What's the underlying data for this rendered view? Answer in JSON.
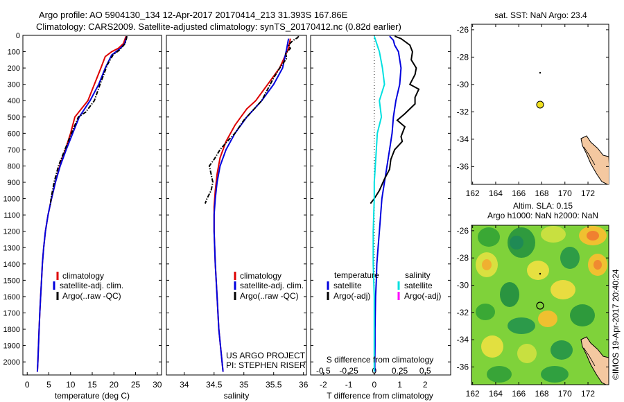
{
  "header": {
    "line1": "Argo profile: AO 5904130_134 12-Apr-2017 20170414_213 31.393S 167.86E",
    "line2": "Climatology: CARS2009. Satellite-adjusted climatology: synTS_20170412.nc (0.82d earlier)"
  },
  "colors": {
    "climatology": "#dd0000",
    "satellite": "#0000dd",
    "argo": "#000000",
    "salinity_sat": "#00e0e0",
    "salinity_argo": "#ff00ff",
    "map_land": "#f4c8a0",
    "float_marker": "#f0e020"
  },
  "chart_data": [
    {
      "id": "temperature",
      "type": "line",
      "xlabel": "temperature (deg C)",
      "ylabel": "",
      "xlim": [
        -1,
        31
      ],
      "ylim": [
        2080,
        0
      ],
      "xticks": [
        0,
        5,
        10,
        15,
        20,
        25,
        30
      ],
      "yticks": [
        0,
        100,
        200,
        300,
        400,
        500,
        600,
        700,
        800,
        900,
        1000,
        1100,
        1200,
        1300,
        1400,
        1500,
        1600,
        1700,
        1800,
        1900,
        2000
      ],
      "legend": [
        "climatology",
        "satellite-adj. clim.",
        "Argo(..raw -QC)"
      ],
      "series": [
        {
          "name": "climatology",
          "style": "solid",
          "color": "#dd0000",
          "points": [
            [
              22.8,
              5
            ],
            [
              22.6,
              20
            ],
            [
              22.2,
              50
            ],
            [
              21,
              80
            ],
            [
              19.5,
              100
            ],
            [
              18,
              130
            ],
            [
              17,
              200
            ],
            [
              15.5,
              300
            ],
            [
              14,
              400
            ],
            [
              12.5,
              450
            ],
            [
              11,
              500
            ],
            [
              10,
              600
            ],
            [
              8.8,
              700
            ],
            [
              7.5,
              800
            ],
            [
              6.5,
              900
            ],
            [
              5.6,
              1000
            ],
            [
              4.8,
              1100
            ],
            [
              4.2,
              1200
            ],
            [
              3.8,
              1300
            ],
            [
              3.5,
              1400
            ],
            [
              3.3,
              1500
            ],
            [
              3.1,
              1600
            ],
            [
              2.9,
              1700
            ],
            [
              2.75,
              1800
            ],
            [
              2.6,
              1900
            ],
            [
              2.45,
              2000
            ],
            [
              2.35,
              2060
            ]
          ]
        },
        {
          "name": "satellite",
          "style": "solid",
          "color": "#0000dd",
          "points": [
            [
              23,
              5
            ],
            [
              22.8,
              20
            ],
            [
              22.5,
              50
            ],
            [
              21.5,
              80
            ],
            [
              20.5,
              100
            ],
            [
              19.5,
              120
            ],
            [
              18,
              200
            ],
            [
              16.5,
              300
            ],
            [
              14.5,
              400
            ],
            [
              12,
              500
            ],
            [
              10.5,
              600
            ],
            [
              9,
              700
            ],
            [
              7.6,
              800
            ],
            [
              6.5,
              900
            ],
            [
              5.6,
              1000
            ],
            [
              4.8,
              1100
            ],
            [
              4.2,
              1200
            ],
            [
              3.8,
              1300
            ],
            [
              3.5,
              1400
            ],
            [
              3.3,
              1500
            ],
            [
              3.1,
              1600
            ],
            [
              2.9,
              1700
            ],
            [
              2.75,
              1800
            ],
            [
              2.6,
              1900
            ],
            [
              2.45,
              2000
            ],
            [
              2.35,
              2060
            ]
          ]
        },
        {
          "name": "argo",
          "style": "dashdot",
          "color": "#000000",
          "points": [
            [
              23,
              5
            ],
            [
              22.9,
              20
            ],
            [
              22.6,
              50
            ],
            [
              21.3,
              90
            ],
            [
              19.8,
              120
            ],
            [
              18.5,
              180
            ],
            [
              17.8,
              230
            ],
            [
              16.8,
              300
            ],
            [
              15.5,
              400
            ],
            [
              13.5,
              470
            ],
            [
              11.8,
              500
            ],
            [
              10.2,
              600
            ],
            [
              8.7,
              700
            ],
            [
              7.2,
              800
            ],
            [
              6.2,
              900
            ],
            [
              5.5,
              1000
            ],
            [
              5.3,
              1040
            ]
          ]
        }
      ]
    },
    {
      "id": "salinity",
      "type": "line",
      "xlabel": "salinity",
      "ylabel": "",
      "xlim": [
        33.7,
        36.05
      ],
      "ylim": [
        2080,
        0
      ],
      "xticks": [
        34,
        34.5,
        35,
        35.5,
        36
      ],
      "legend": [
        "climatology",
        "satellite-adj. clim.",
        "Argo(..raw -QC)"
      ],
      "series": [
        {
          "name": "climatology",
          "style": "solid",
          "color": "#dd0000",
          "points": [
            [
              35.78,
              20
            ],
            [
              35.75,
              80
            ],
            [
              35.6,
              200
            ],
            [
              35.4,
              300
            ],
            [
              35.2,
              400
            ],
            [
              35.05,
              450
            ],
            [
              34.95,
              500
            ],
            [
              34.85,
              550
            ],
            [
              34.7,
              650
            ],
            [
              34.6,
              750
            ],
            [
              34.55,
              850
            ],
            [
              34.52,
              950
            ],
            [
              34.5,
              1050
            ],
            [
              34.5,
              1200
            ],
            [
              34.52,
              1400
            ],
            [
              34.55,
              1600
            ],
            [
              34.58,
              1800
            ],
            [
              34.62,
              1950
            ],
            [
              34.65,
              2060
            ]
          ]
        },
        {
          "name": "satellite",
          "style": "solid",
          "color": "#0000dd",
          "points": [
            [
              35.75,
              20
            ],
            [
              35.72,
              80
            ],
            [
              35.65,
              200
            ],
            [
              35.5,
              300
            ],
            [
              35.3,
              400
            ],
            [
              35.05,
              500
            ],
            [
              34.85,
              600
            ],
            [
              34.7,
              700
            ],
            [
              34.6,
              800
            ],
            [
              34.55,
              900
            ],
            [
              34.52,
              1000
            ],
            [
              34.5,
              1100
            ],
            [
              34.5,
              1200
            ],
            [
              34.52,
              1400
            ],
            [
              34.55,
              1600
            ],
            [
              34.58,
              1800
            ],
            [
              34.62,
              1950
            ],
            [
              34.65,
              2060
            ]
          ]
        },
        {
          "name": "argo",
          "style": "dashdot",
          "color": "#000000",
          "points": [
            [
              35.92,
              5
            ],
            [
              35.9,
              15
            ],
            [
              35.85,
              25
            ],
            [
              35.8,
              40
            ],
            [
              35.75,
              60
            ],
            [
              35.78,
              80
            ],
            [
              35.7,
              110
            ],
            [
              35.72,
              140
            ],
            [
              35.62,
              190
            ],
            [
              35.5,
              260
            ],
            [
              35.4,
              330
            ],
            [
              35.3,
              400
            ],
            [
              35.15,
              460
            ],
            [
              35.0,
              520
            ],
            [
              34.85,
              600
            ],
            [
              34.72,
              650
            ],
            [
              34.6,
              700
            ],
            [
              34.5,
              760
            ],
            [
              34.42,
              800
            ],
            [
              34.45,
              850
            ],
            [
              34.48,
              900
            ],
            [
              34.45,
              950
            ],
            [
              34.38,
              1000
            ],
            [
              34.35,
              1030
            ]
          ]
        }
      ]
    },
    {
      "id": "difference",
      "type": "line",
      "xlabel": "T difference from climatology",
      "xlabel_top": "S difference from climatology",
      "ylabel": "",
      "xlim": [
        -2.5,
        3
      ],
      "ylim": [
        2080,
        0
      ],
      "xticks_T": [
        -2,
        -1,
        0,
        1,
        2
      ],
      "xticks_S": [
        -0.5,
        -0.25,
        0,
        0.25,
        0.5
      ],
      "legend": {
        "temperature_title": "temperature",
        "salinity_title": "salinity",
        "t_sat": "satellite",
        "t_argo": "Argo(-adj)",
        "s_sat": "satellite",
        "s_argo": "Argo(-adj)"
      },
      "series": [
        {
          "name": "T satellite",
          "style": "solid",
          "color": "#0000dd",
          "points": [
            [
              0.6,
              5
            ],
            [
              0.75,
              30
            ],
            [
              0.8,
              60
            ],
            [
              0.95,
              100
            ],
            [
              1.05,
              200
            ],
            [
              1.0,
              300
            ],
            [
              0.85,
              400
            ],
            [
              0.75,
              500
            ],
            [
              0.7,
              600
            ],
            [
              0.6,
              700
            ],
            [
              0.5,
              800
            ],
            [
              0.4,
              900
            ],
            [
              0.3,
              1000
            ],
            [
              0.25,
              1100
            ],
            [
              0.2,
              1200
            ],
            [
              0.15,
              1300
            ],
            [
              0.1,
              1400
            ],
            [
              0.08,
              1500
            ],
            [
              0.05,
              1600
            ],
            [
              0.04,
              1700
            ],
            [
              0.03,
              1800
            ],
            [
              0.03,
              1900
            ],
            [
              0.02,
              2000
            ],
            [
              0.02,
              2060
            ]
          ]
        },
        {
          "name": "T Argo",
          "style": "solid",
          "color": "#000000",
          "points": [
            [
              0.8,
              5
            ],
            [
              1.05,
              20
            ],
            [
              1.4,
              60
            ],
            [
              1.5,
              100
            ],
            [
              1.45,
              150
            ],
            [
              1.65,
              200
            ],
            [
              1.6,
              240
            ],
            [
              1.4,
              300
            ],
            [
              1.75,
              330
            ],
            [
              1.6,
              380
            ],
            [
              1.6,
              420
            ],
            [
              1.2,
              480
            ],
            [
              0.9,
              520
            ],
            [
              1.2,
              560
            ],
            [
              1.05,
              620
            ],
            [
              1.1,
              650
            ],
            [
              0.8,
              700
            ],
            [
              0.65,
              760
            ],
            [
              0.6,
              820
            ],
            [
              0.4,
              880
            ],
            [
              0.2,
              950
            ],
            [
              0.0,
              1000
            ],
            [
              -0.15,
              1030
            ]
          ]
        },
        {
          "name": "S satellite",
          "style": "solid",
          "color": "#00e0e0",
          "points": [
            [
              0.0,
              5
            ],
            [
              0.05,
              100
            ],
            [
              0.08,
              200
            ],
            [
              0.1,
              300
            ],
            [
              0.05,
              400
            ],
            [
              0.07,
              500
            ],
            [
              0.03,
              600
            ],
            [
              0.02,
              700
            ],
            [
              0.01,
              800
            ],
            [
              0.0,
              900
            ],
            [
              0.0,
              1000
            ],
            [
              -0.01,
              1200
            ],
            [
              -0.01,
              1400
            ],
            [
              0.0,
              1600
            ],
            [
              0.0,
              1800
            ],
            [
              0.0,
              2060
            ]
          ]
        }
      ]
    }
  ],
  "maps": {
    "sst": {
      "title": "sat. SST: NaN Argo: 23.4",
      "xticks": [
        162,
        164,
        166,
        168,
        170,
        172
      ],
      "yticks": [
        -26,
        -28,
        -30,
        -32,
        -34,
        -36
      ],
      "float_lon": 167.86,
      "float_lat": -31.393
    },
    "sla": {
      "title1": "Altim. SLA: 0.15",
      "title2": "Argo h1000: NaN h2000: NaN",
      "xticks": [
        162,
        164,
        166,
        168,
        170,
        172
      ],
      "yticks": [
        -26,
        -28,
        -30,
        -32,
        -34,
        -36
      ],
      "float_lon": 167.86,
      "float_lat": -31.393
    }
  },
  "footer": {
    "credit1": "US ARGO PROJECT",
    "credit2": "PI: STEPHEN RISER",
    "stamp": "©IMOS 19-Apr-2017 20:40:24"
  }
}
